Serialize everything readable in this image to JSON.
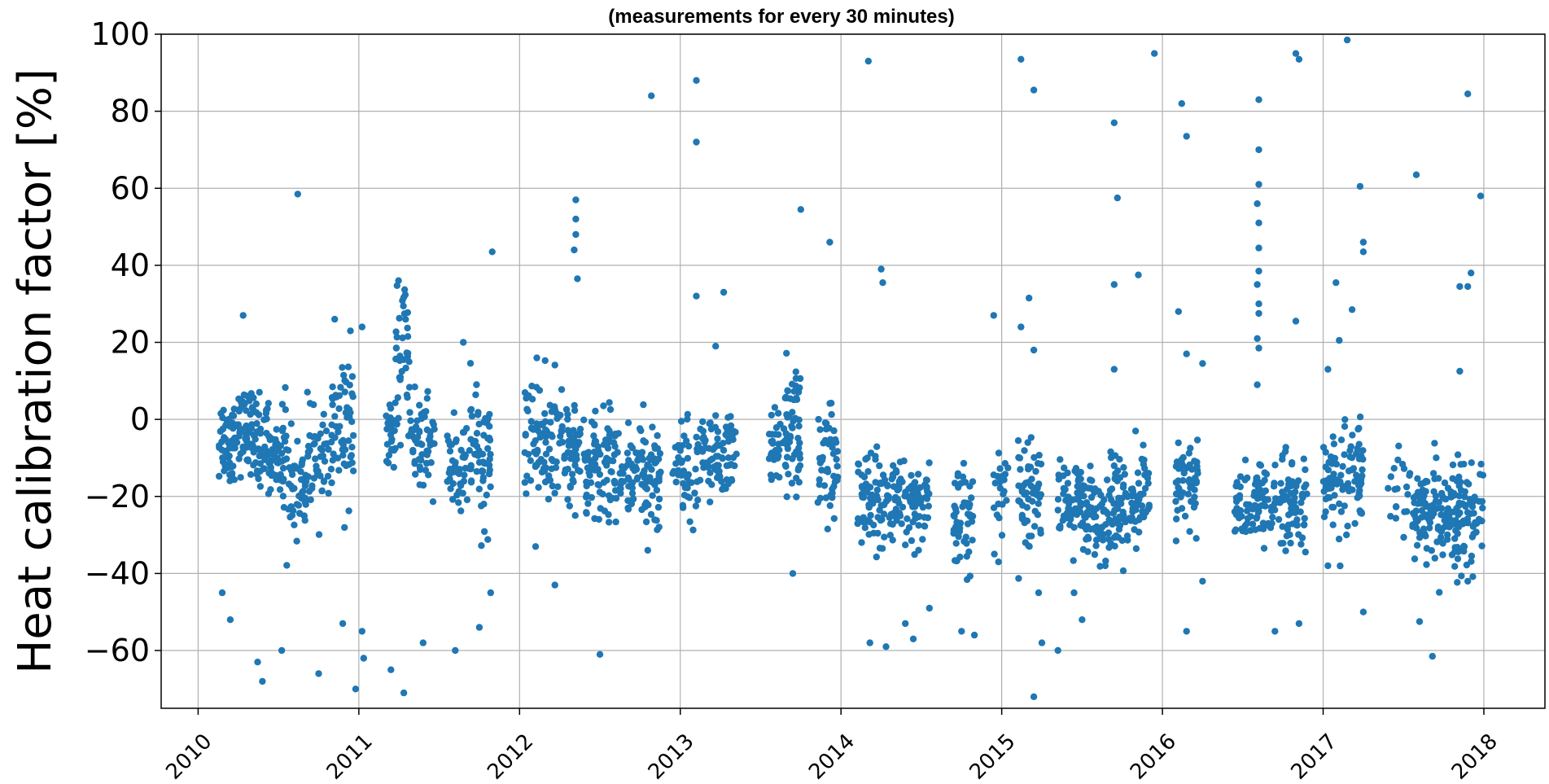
{
  "chart_data": {
    "type": "scatter",
    "title": "",
    "subtitle": "(measurements for every 30 minutes)",
    "xlabel": "",
    "ylabel": "Heat calibration factor [%]",
    "xlim": [
      2009.77,
      2018.38
    ],
    "ylim": [
      -75,
      100
    ],
    "x_ticks": [
      2010,
      2011,
      2012,
      2013,
      2014,
      2015,
      2016,
      2017,
      2018
    ],
    "x_tick_labels": [
      "2010",
      "2011",
      "2012",
      "2013",
      "2014",
      "2015",
      "2016",
      "2017",
      "2018"
    ],
    "y_ticks": [
      -60,
      -40,
      -20,
      0,
      20,
      40,
      60,
      80,
      100
    ],
    "y_tick_labels": [
      "−60",
      "−40",
      "−20",
      "0",
      "20",
      "40",
      "60",
      "80",
      "100"
    ],
    "grid": true,
    "marker_color": "#1f77b4",
    "series": [
      {
        "clusters": [
          [
            2010.13,
            2010.23,
            -5,
            6,
            50
          ],
          [
            2010.23,
            2010.33,
            -3,
            5,
            45
          ],
          [
            2010.33,
            2010.45,
            -6,
            6,
            60
          ],
          [
            2010.45,
            2010.55,
            -9,
            6,
            45
          ],
          [
            2010.55,
            2010.68,
            -17,
            6,
            45
          ],
          [
            2010.68,
            2010.82,
            -12,
            7,
            45
          ],
          [
            2010.82,
            2010.97,
            -2,
            9,
            60
          ],
          [
            2011.17,
            2011.23,
            -5,
            6,
            25
          ],
          [
            2011.23,
            2011.32,
            15,
            9,
            40
          ],
          [
            2011.32,
            2011.47,
            -6,
            6,
            60
          ],
          [
            2011.55,
            2011.68,
            -13,
            7,
            45
          ],
          [
            2011.68,
            2011.82,
            -10,
            8,
            60
          ],
          [
            2012.03,
            2012.18,
            -4,
            8,
            60
          ],
          [
            2012.18,
            2012.4,
            -8,
            7,
            80
          ],
          [
            2012.4,
            2012.6,
            -12,
            7,
            90
          ],
          [
            2012.6,
            2012.88,
            -14,
            7,
            110
          ],
          [
            2012.95,
            2013.1,
            -13,
            6,
            40
          ],
          [
            2013.1,
            2013.35,
            -10,
            6,
            90
          ],
          [
            2013.55,
            2013.65,
            -8,
            5,
            30
          ],
          [
            2013.65,
            2013.75,
            -2,
            9,
            60
          ],
          [
            2013.85,
            2013.98,
            -14,
            8,
            50
          ],
          [
            2014.1,
            2014.25,
            -20,
            6,
            60
          ],
          [
            2014.25,
            2014.55,
            -22,
            5,
            120
          ],
          [
            2014.7,
            2014.82,
            -26,
            7,
            50
          ],
          [
            2014.95,
            2015.05,
            -18,
            6,
            25
          ],
          [
            2015.1,
            2015.25,
            -18,
            7,
            60
          ],
          [
            2015.35,
            2015.5,
            -22,
            5,
            60
          ],
          [
            2015.5,
            2015.7,
            -24,
            6,
            80
          ],
          [
            2015.7,
            2015.92,
            -22,
            7,
            90
          ],
          [
            2016.08,
            2016.22,
            -17,
            6,
            60
          ],
          [
            2016.45,
            2016.58,
            -23,
            5,
            40
          ],
          [
            2016.58,
            2016.68,
            -21,
            6,
            40
          ],
          [
            2016.68,
            2016.9,
            -22,
            7,
            80
          ],
          [
            2017.0,
            2017.25,
            -17,
            7,
            100
          ],
          [
            2017.4,
            2017.55,
            -20,
            5,
            20
          ],
          [
            2017.55,
            2017.8,
            -25,
            6,
            110
          ],
          [
            2017.8,
            2018.0,
            -24,
            7,
            90
          ]
        ],
        "outliers": [
          [
            2010.62,
            58.5
          ],
          [
            2010.28,
            27
          ],
          [
            2010.15,
            -45
          ],
          [
            2010.2,
            -52
          ],
          [
            2010.37,
            -63
          ],
          [
            2010.4,
            -68
          ],
          [
            2010.52,
            -60
          ],
          [
            2010.75,
            -66
          ],
          [
            2010.9,
            -53
          ],
          [
            2010.98,
            -70
          ],
          [
            2011.03,
            -62
          ],
          [
            2011.02,
            -55
          ],
          [
            2010.85,
            26
          ],
          [
            2011.02,
            24
          ],
          [
            2011.2,
            -65
          ],
          [
            2011.28,
            -71
          ],
          [
            2011.4,
            -58
          ],
          [
            2011.6,
            -60
          ],
          [
            2011.75,
            -54
          ],
          [
            2011.83,
            43.5
          ],
          [
            2011.82,
            -45
          ],
          [
            2011.65,
            20
          ],
          [
            2012.35,
            57
          ],
          [
            2012.35,
            52
          ],
          [
            2012.35,
            48
          ],
          [
            2012.34,
            44
          ],
          [
            2012.36,
            36.5
          ],
          [
            2012.5,
            -61
          ],
          [
            2012.22,
            -43
          ],
          [
            2012.1,
            -33
          ],
          [
            2012.82,
            84
          ],
          [
            2013.1,
            88
          ],
          [
            2013.1,
            72
          ],
          [
            2013.1,
            32
          ],
          [
            2013.27,
            33
          ],
          [
            2013.22,
            19
          ],
          [
            2013.75,
            54.5
          ],
          [
            2013.93,
            46
          ],
          [
            2013.7,
            -40
          ],
          [
            2014.17,
            93
          ],
          [
            2014.25,
            39
          ],
          [
            2014.26,
            35.5
          ],
          [
            2014.18,
            -58
          ],
          [
            2014.28,
            -59
          ],
          [
            2014.4,
            -53
          ],
          [
            2014.45,
            -57
          ],
          [
            2014.55,
            -49
          ],
          [
            2014.95,
            27
          ],
          [
            2014.98,
            -37
          ],
          [
            2014.75,
            -55
          ],
          [
            2014.83,
            -56
          ],
          [
            2015.12,
            93.5
          ],
          [
            2015.2,
            85.5
          ],
          [
            2015.17,
            31.5
          ],
          [
            2015.12,
            24
          ],
          [
            2015.2,
            18
          ],
          [
            2015.23,
            -45
          ],
          [
            2015.25,
            -58
          ],
          [
            2015.35,
            -60
          ],
          [
            2015.2,
            -72
          ],
          [
            2015.45,
            -45
          ],
          [
            2015.5,
            -52
          ],
          [
            2015.7,
            77
          ],
          [
            2015.72,
            57.5
          ],
          [
            2015.7,
            35
          ],
          [
            2015.85,
            37.5
          ],
          [
            2015.95,
            95
          ],
          [
            2015.7,
            13
          ],
          [
            2016.12,
            82
          ],
          [
            2016.15,
            73.5
          ],
          [
            2016.1,
            28
          ],
          [
            2016.15,
            17
          ],
          [
            2016.25,
            14.5
          ],
          [
            2016.15,
            -55
          ],
          [
            2016.25,
            -42
          ],
          [
            2016.6,
            83
          ],
          [
            2016.6,
            70
          ],
          [
            2016.6,
            61
          ],
          [
            2016.59,
            56
          ],
          [
            2016.6,
            51
          ],
          [
            2016.6,
            44.5
          ],
          [
            2016.6,
            38.5
          ],
          [
            2016.59,
            35
          ],
          [
            2016.6,
            30
          ],
          [
            2016.6,
            27.5
          ],
          [
            2016.59,
            21
          ],
          [
            2016.6,
            18.5
          ],
          [
            2016.59,
            9
          ],
          [
            2016.83,
            95
          ],
          [
            2016.85,
            93.5
          ],
          [
            2016.83,
            25.5
          ],
          [
            2016.7,
            -55
          ],
          [
            2016.85,
            -53
          ],
          [
            2017.03,
            13
          ],
          [
            2017.08,
            35.5
          ],
          [
            2017.1,
            20.5
          ],
          [
            2017.18,
            28.5
          ],
          [
            2017.23,
            60.5
          ],
          [
            2017.25,
            46
          ],
          [
            2017.25,
            43.5
          ],
          [
            2017.15,
            98.5
          ],
          [
            2017.25,
            -50
          ],
          [
            2017.03,
            -38
          ],
          [
            2017.58,
            63.5
          ],
          [
            2017.6,
            -52.5
          ],
          [
            2017.68,
            -61.5
          ],
          [
            2017.85,
            12.5
          ],
          [
            2017.85,
            34.5
          ],
          [
            2017.9,
            34.5
          ],
          [
            2017.92,
            38
          ],
          [
            2017.9,
            84.5
          ],
          [
            2017.98,
            58
          ],
          [
            2017.9,
            -42
          ]
        ]
      }
    ]
  }
}
